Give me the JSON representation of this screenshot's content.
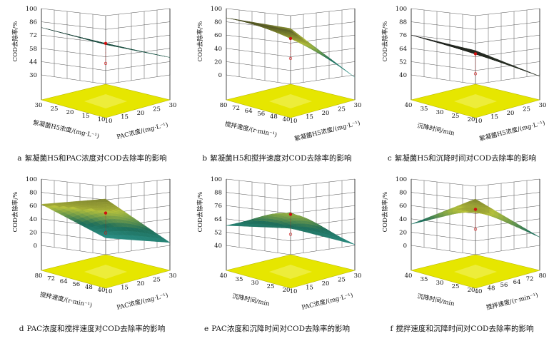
{
  "colors": {
    "floor": "#e6e600",
    "floor_edge": "#b8b800",
    "grid": "#555555",
    "surface_top": "#1a1a1a",
    "surface_mid": "#1e6e5a",
    "surface_low": "#2f9e9a",
    "surface_yellow": "#b8c23a",
    "point": "#d01010"
  },
  "panels": [
    {
      "letter": "a",
      "caption": "絮凝菌H5和PAC浓度对COD去除率的影响",
      "zlabel": "COD去除率/%",
      "zticks": [
        "100",
        "86",
        "72",
        "58",
        "44",
        "30"
      ],
      "left_axis": {
        "ticks": [
          "30",
          "25",
          "20",
          "15",
          "10"
        ],
        "label": "絮凝菌H5浓度/(mg·L⁻¹)"
      },
      "right_axis": {
        "ticks": [
          "10",
          "15",
          "20",
          "25",
          "30"
        ],
        "label": "PAC浓度/(mg·L⁻¹)"
      },
      "surface_corners": [
        80,
        62,
        65,
        70
      ],
      "palette": "dark-green"
    },
    {
      "letter": "b",
      "caption": "絮凝菌H5和搅拌速度对COD去除率的影响",
      "zlabel": "COD去除率/%",
      "zticks": [
        "100",
        "80",
        "60",
        "40",
        "20",
        "0"
      ],
      "left_axis": {
        "ticks": [
          "80",
          "72",
          "64",
          "56",
          "48",
          "40"
        ],
        "label": "搅拌速度/(r·min⁻¹)"
      },
      "right_axis": {
        "ticks": [
          "10",
          "15",
          "20",
          "25",
          "30"
        ],
        "label": "絮凝菌H5浓度/(mg·L⁻¹)"
      },
      "surface_corners": [
        86,
        70,
        20,
        78
      ],
      "palette": "dark-teal"
    },
    {
      "letter": "c",
      "caption": "絮凝菌H5和沉降时间对COD去除率的影响",
      "zlabel": "COD去除率/%",
      "zticks": [
        "100",
        "88",
        "76",
        "64",
        "52",
        "40"
      ],
      "left_axis": {
        "ticks": [
          "40",
          "35",
          "30",
          "25",
          "20"
        ],
        "label": "沉降时间/min"
      },
      "right_axis": {
        "ticks": [
          "10",
          "15",
          "20",
          "25",
          "30"
        ],
        "label": "絮凝菌H5浓度/(mg·L⁻¹)"
      },
      "surface_corners": [
        76,
        62,
        53,
        66
      ],
      "palette": "black"
    },
    {
      "letter": "d",
      "caption": "PAC浓度和搅拌速度对COD去除率的影响",
      "zlabel": "COD去除率/%",
      "zticks": [
        "100",
        "80",
        "60",
        "40",
        "20",
        "0"
      ],
      "left_axis": {
        "ticks": [
          "80",
          "72",
          "64",
          "56",
          "48",
          "40"
        ],
        "label": "搅拌速度/(r·min⁻¹)"
      },
      "right_axis": {
        "ticks": [
          "10",
          "15",
          "20",
          "25",
          "30"
        ],
        "label": "PAC浓度/(mg·L⁻¹)"
      },
      "surface_corners": [
        62,
        70,
        28,
        22
      ],
      "palette": "dome"
    },
    {
      "letter": "e",
      "caption": "PAC浓度和沉降时间对COD去除率的影响",
      "zlabel": "COD去除率/%",
      "zticks": [
        "100",
        "88",
        "76",
        "64",
        "52",
        "40"
      ],
      "left_axis": {
        "ticks": [
          "40",
          "35",
          "30",
          "25",
          "20"
        ],
        "label": "沉降时间/min"
      },
      "right_axis": {
        "ticks": [
          "10",
          "15",
          "20",
          "25",
          "30"
        ],
        "label": "PAC浓度/(mg·L⁻¹)"
      },
      "surface_corners": [
        58,
        70,
        55,
        62
      ],
      "palette": "dome"
    },
    {
      "letter": "f",
      "caption": "搅拌速度和沉降时间对COD去除率的影响",
      "zlabel": "COD去除率/%",
      "zticks": [
        "100",
        "80",
        "60",
        "40",
        "20",
        "0"
      ],
      "left_axis": {
        "ticks": [
          "40",
          "35",
          "30",
          "25",
          "20"
        ],
        "label": "沉降时间/min"
      },
      "right_axis": {
        "ticks": [
          "40",
          "48",
          "56",
          "64",
          "72",
          "80"
        ],
        "label": "搅拌速度/(r·min⁻¹)"
      },
      "surface_corners": [
        32,
        70,
        36,
        66
      ],
      "palette": "dome"
    }
  ]
}
